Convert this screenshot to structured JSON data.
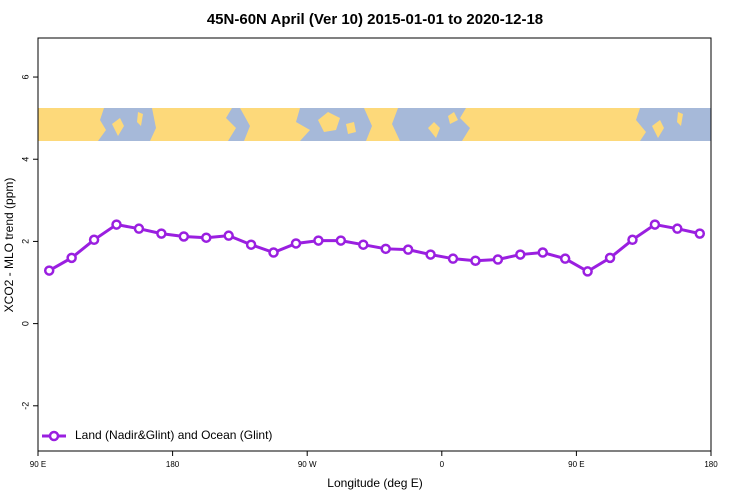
{
  "chart_data": {
    "type": "line",
    "title": "45N-60N April (Ver 10)   2015-01-01 to 2020-12-18",
    "xlabel": "Longitude (deg E)",
    "ylabel": "XCO2 - MLO trend (ppm)",
    "x": [
      97.5,
      112.5,
      127.5,
      142.5,
      157.5,
      172.5,
      187.5,
      202.5,
      217.5,
      232.5,
      247.5,
      262.5,
      277.5,
      292.5,
      307.5,
      322.5,
      337.5,
      352.5,
      367.5,
      382.5,
      397.5,
      412.5,
      427.5,
      442.5,
      457.5,
      472.5,
      487.5,
      502.5,
      517.5,
      532.5
    ],
    "series": [
      {
        "name": "Land (Nadir&Glint) and Ocean (Glint)",
        "color": "#9a1fe0",
        "values": [
          1.29,
          1.6,
          2.04,
          2.41,
          2.31,
          2.19,
          2.12,
          2.09,
          2.14,
          1.92,
          1.73,
          1.95,
          2.02,
          2.02,
          1.92,
          1.82,
          1.8,
          1.68,
          1.58,
          1.53,
          1.56,
          1.68,
          1.73,
          1.58,
          1.27,
          1.6,
          2.04,
          2.41,
          2.31,
          2.19
        ]
      }
    ],
    "xlim": [
      90,
      540
    ],
    "xticks": [
      {
        "value": 90,
        "label": "90 E"
      },
      {
        "value": 180,
        "label": "180"
      },
      {
        "value": 270,
        "label": "90 W"
      },
      {
        "value": 360,
        "label": "0"
      },
      {
        "value": 450,
        "label": "90 E"
      },
      {
        "value": 540,
        "label": "180"
      }
    ],
    "ylim": [
      -3.1,
      6.95
    ],
    "yticks": [
      -2,
      0,
      2,
      4,
      6
    ],
    "legend": "bottom-left"
  }
}
